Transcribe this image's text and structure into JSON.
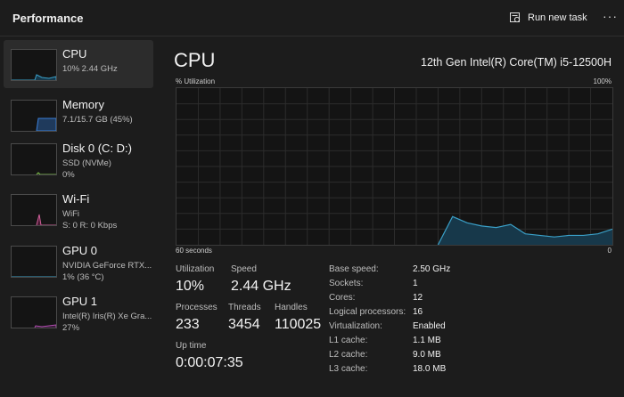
{
  "header": {
    "title": "Performance",
    "run_task_label": "Run new task",
    "more_label": "···"
  },
  "sidebar": {
    "items": [
      {
        "name": "CPU",
        "sub1": "10%  2.44 GHz",
        "sub2": "",
        "color": "#3aa0c8"
      },
      {
        "name": "Memory",
        "sub1": "7.1/15.7 GB (45%)",
        "sub2": "",
        "color": "#3a7fd8"
      },
      {
        "name": "Disk 0 (C: D:)",
        "sub1": "SSD (NVMe)",
        "sub2": "0%",
        "color": "#7fc34a"
      },
      {
        "name": "Wi-Fi",
        "sub1": "WiFi",
        "sub2": "S: 0  R: 0 Kbps",
        "color": "#d0609a"
      },
      {
        "name": "GPU 0",
        "sub1": "NVIDIA GeForce RTX...",
        "sub2": "1%  (36 °C)",
        "color": "#3aa0c8"
      },
      {
        "name": "GPU 1",
        "sub1": "Intel(R) Iris(R) Xe Gra...",
        "sub2": "27%",
        "color": "#b050b0"
      }
    ]
  },
  "main": {
    "title": "CPU",
    "processor": "12th Gen Intel(R) Core(TM) i5-12500H",
    "util_label": "% Utilization",
    "util_max": "100%",
    "axis_left": "60 seconds",
    "axis_right": "0"
  },
  "stats": {
    "utilization": {
      "label": "Utilization",
      "value": "10%"
    },
    "speed": {
      "label": "Speed",
      "value": "2.44 GHz"
    },
    "processes": {
      "label": "Processes",
      "value": "233"
    },
    "threads": {
      "label": "Threads",
      "value": "3454"
    },
    "handles": {
      "label": "Handles",
      "value": "110025"
    },
    "uptime": {
      "label": "Up time",
      "value": "0:00:07:35"
    }
  },
  "specs": [
    {
      "k": "Base speed:",
      "v": "2.50 GHz"
    },
    {
      "k": "Sockets:",
      "v": "1"
    },
    {
      "k": "Cores:",
      "v": "12"
    },
    {
      "k": "Logical processors:",
      "v": "16"
    },
    {
      "k": "Virtualization:",
      "v": "Enabled"
    },
    {
      "k": "L1 cache:",
      "v": "1.1 MB"
    },
    {
      "k": "L2 cache:",
      "v": "9.0 MB"
    },
    {
      "k": "L3 cache:",
      "v": "18.0 MB"
    }
  ],
  "chart_data": {
    "type": "area",
    "ylim": [
      0,
      100
    ],
    "x": [
      60,
      58,
      56,
      54,
      52,
      50,
      48,
      46,
      44,
      42,
      40,
      38,
      36,
      34,
      32,
      30,
      28,
      26,
      24,
      22,
      20,
      18,
      16,
      14,
      12,
      10,
      8,
      6,
      4,
      2,
      0
    ],
    "values": [
      0,
      0,
      0,
      0,
      0,
      0,
      0,
      0,
      0,
      0,
      0,
      0,
      0,
      0,
      0,
      0,
      0,
      0,
      0,
      18,
      14,
      12,
      11,
      13,
      7,
      6,
      5,
      6,
      6,
      7,
      10
    ]
  },
  "colors": {
    "accent": "#3aa0c8",
    "graph_fill": "#17384a",
    "grid": "#2c2c2c"
  }
}
